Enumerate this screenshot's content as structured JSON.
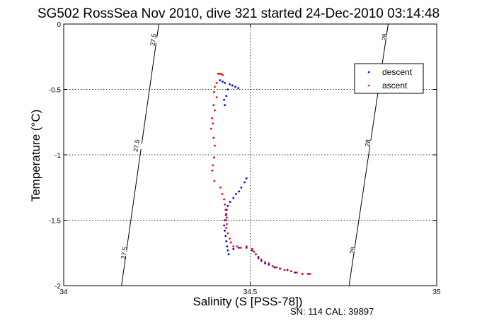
{
  "chart_data": {
    "type": "scatter",
    "title": "SG502 RossSea Nov 2010, dive 321 started 24-Dec-2010 03:14:48",
    "xlabel": "Salinity (S [PSS-78])",
    "ylabel": "Temperature (°C)",
    "xlim": [
      34,
      35
    ],
    "ylim": [
      -2,
      0
    ],
    "x_ticks": [
      "34",
      "34.5",
      "35"
    ],
    "y_ticks": [
      "0",
      "-0.5",
      "-1",
      "-1.5",
      "-2"
    ],
    "grid": true,
    "legend_position": "top-right",
    "footer": "SN: 114  CAL: 39897",
    "density_contours": [
      {
        "label": "27.5",
        "points": [
          [
            34.155,
            -2.0
          ],
          [
            34.255,
            0.0
          ]
        ],
        "label_positions": [
          [
            34.24,
            -0.12
          ],
          [
            34.195,
            -0.93
          ],
          [
            34.162,
            -1.75
          ]
        ]
      },
      {
        "label": "28",
        "points": [
          [
            34.765,
            -2.0
          ],
          [
            34.87,
            0.0
          ]
        ],
        "label_positions": [
          [
            34.86,
            -0.1
          ],
          [
            34.815,
            -0.91
          ],
          [
            34.775,
            -1.73
          ]
        ]
      }
    ],
    "series": [
      {
        "name": "descent",
        "color": "#0000ff",
        "points": [
          [
            34.419,
            -0.43
          ],
          [
            34.426,
            -0.44
          ],
          [
            34.432,
            -0.45
          ],
          [
            34.445,
            -0.46
          ],
          [
            34.452,
            -0.47
          ],
          [
            34.46,
            -0.48
          ],
          [
            34.468,
            -0.49
          ],
          [
            34.44,
            -0.5
          ],
          [
            34.436,
            -0.55
          ],
          [
            34.43,
            -0.58
          ],
          [
            34.432,
            -0.62
          ],
          [
            34.49,
            -1.18
          ],
          [
            34.485,
            -1.21
          ],
          [
            34.476,
            -1.25
          ],
          [
            34.47,
            -1.28
          ],
          [
            34.462,
            -1.3
          ],
          [
            34.455,
            -1.33
          ],
          [
            34.446,
            -1.36
          ],
          [
            34.44,
            -1.39
          ],
          [
            34.437,
            -1.42
          ],
          [
            34.435,
            -1.46
          ],
          [
            34.432,
            -1.5
          ],
          [
            34.43,
            -1.54
          ],
          [
            34.432,
            -1.58
          ],
          [
            34.434,
            -1.62
          ],
          [
            34.436,
            -1.66
          ],
          [
            34.438,
            -1.7
          ],
          [
            34.44,
            -1.73
          ],
          [
            34.442,
            -1.76
          ],
          [
            34.455,
            -1.72
          ],
          [
            34.47,
            -1.71
          ],
          [
            34.49,
            -1.71
          ],
          [
            34.505,
            -1.73
          ],
          [
            34.515,
            -1.76
          ],
          [
            34.522,
            -1.79
          ],
          [
            34.53,
            -1.81
          ],
          [
            34.54,
            -1.83
          ],
          [
            34.55,
            -1.84
          ],
          [
            34.565,
            -1.86
          ],
          [
            34.58,
            -1.87
          ],
          [
            34.6,
            -1.88
          ],
          [
            34.61,
            -1.89
          ],
          [
            34.62,
            -1.9
          ],
          [
            34.64,
            -1.91
          ],
          [
            34.655,
            -1.91
          ]
        ]
      },
      {
        "name": "ascent",
        "color": "#ff0000",
        "points": [
          [
            34.414,
            -0.38
          ],
          [
            34.418,
            -0.38
          ],
          [
            34.422,
            -0.38
          ],
          [
            34.426,
            -0.39
          ],
          [
            34.41,
            -0.45
          ],
          [
            34.405,
            -0.48
          ],
          [
            34.403,
            -0.52
          ],
          [
            34.41,
            -0.56
          ],
          [
            34.402,
            -0.62
          ],
          [
            34.405,
            -0.66
          ],
          [
            34.398,
            -0.72
          ],
          [
            34.4,
            -0.76
          ],
          [
            34.395,
            -0.8
          ],
          [
            34.402,
            -0.87
          ],
          [
            34.405,
            -0.93
          ],
          [
            34.403,
            -1.02
          ],
          [
            34.4,
            -1.08
          ],
          [
            34.398,
            -1.12
          ],
          [
            34.404,
            -1.2
          ],
          [
            34.42,
            -1.25
          ],
          [
            34.425,
            -1.3
          ],
          [
            34.43,
            -1.34
          ],
          [
            34.432,
            -1.38
          ],
          [
            34.434,
            -1.42
          ],
          [
            34.436,
            -1.45
          ],
          [
            34.437,
            -1.48
          ],
          [
            34.436,
            -1.5
          ],
          [
            34.437,
            -1.53
          ],
          [
            34.436,
            -1.56
          ],
          [
            34.44,
            -1.6
          ],
          [
            34.445,
            -1.64
          ],
          [
            34.448,
            -1.67
          ],
          [
            34.455,
            -1.7
          ],
          [
            34.465,
            -1.7
          ],
          [
            34.475,
            -1.71
          ],
          [
            34.49,
            -1.7
          ],
          [
            34.505,
            -1.72
          ],
          [
            34.51,
            -1.74
          ],
          [
            34.515,
            -1.76
          ],
          [
            34.522,
            -1.78
          ],
          [
            34.53,
            -1.8
          ],
          [
            34.54,
            -1.82
          ],
          [
            34.55,
            -1.83
          ],
          [
            34.56,
            -1.85
          ],
          [
            34.57,
            -1.86
          ],
          [
            34.58,
            -1.87
          ],
          [
            34.592,
            -1.88
          ],
          [
            34.61,
            -1.89
          ],
          [
            34.625,
            -1.9
          ],
          [
            34.64,
            -1.91
          ],
          [
            34.655,
            -1.91
          ],
          [
            34.66,
            -1.91
          ]
        ]
      }
    ]
  }
}
